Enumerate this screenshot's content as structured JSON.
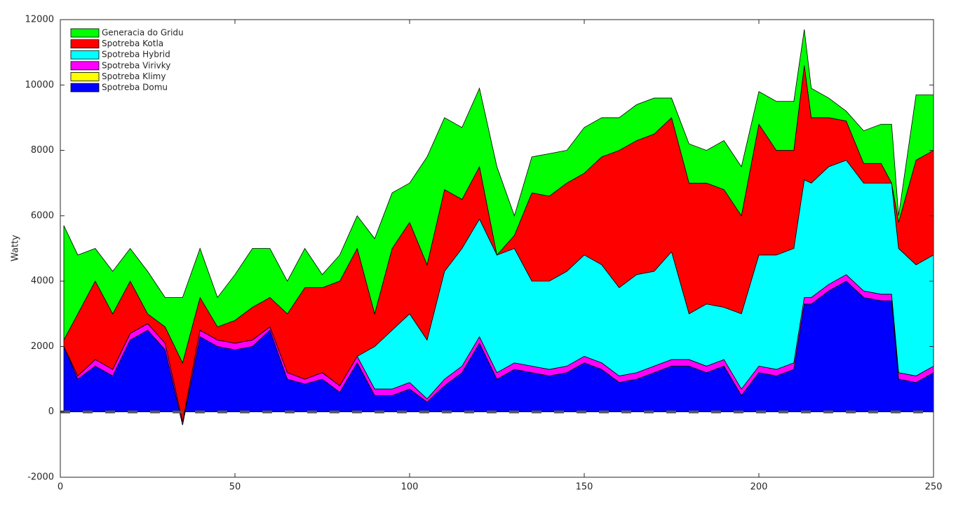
{
  "chart_data": {
    "type": "stacked-area",
    "ylabel": "Watty",
    "x": [
      1,
      5,
      10,
      15,
      20,
      25,
      30,
      35,
      40,
      45,
      50,
      55,
      60,
      65,
      70,
      75,
      80,
      85,
      90,
      95,
      100,
      105,
      110,
      115,
      120,
      125,
      130,
      135,
      140,
      145,
      150,
      155,
      160,
      165,
      170,
      175,
      180,
      185,
      190,
      195,
      200,
      205,
      210,
      213,
      215,
      220,
      225,
      230,
      235,
      238,
      240,
      245,
      250
    ],
    "series": [
      {
        "name": "Spotreba Domu",
        "color": "#0000ff",
        "values": [
          2000,
          1000,
          1400,
          1100,
          2200,
          2500,
          1900,
          -400,
          2300,
          2000,
          1900,
          2000,
          2500,
          1000,
          850,
          1000,
          600,
          1500,
          500,
          500,
          700,
          300,
          800,
          1200,
          2100,
          1000,
          1300,
          1200,
          1100,
          1200,
          1500,
          1300,
          900,
          1000,
          1200,
          1400,
          1400,
          1200,
          1400,
          500,
          1200,
          1100,
          1300,
          3300,
          3300,
          3700,
          4000,
          3500,
          3400,
          3400,
          1000,
          900,
          1200
        ]
      },
      {
        "name": "Spotreba Klimy",
        "color": "#ffff00",
        "values": [
          0,
          0,
          0,
          0,
          0,
          0,
          0,
          0,
          0,
          0,
          0,
          0,
          0,
          0,
          0,
          0,
          0,
          0,
          0,
          0,
          0,
          0,
          0,
          0,
          0,
          0,
          0,
          0,
          0,
          0,
          0,
          0,
          0,
          0,
          0,
          0,
          0,
          0,
          0,
          0,
          0,
          0,
          0,
          0,
          0,
          0,
          0,
          0,
          0,
          0,
          0,
          0,
          0
        ]
      },
      {
        "name": "Spotreba Virivky",
        "color": "#ff00ff",
        "values": [
          0,
          100,
          200,
          200,
          200,
          200,
          200,
          100,
          200,
          200,
          200,
          200,
          100,
          200,
          150,
          200,
          200,
          200,
          200,
          200,
          200,
          100,
          200,
          200,
          200,
          200,
          200,
          200,
          200,
          200,
          200,
          200,
          200,
          200,
          200,
          200,
          200,
          200,
          200,
          200,
          200,
          200,
          200,
          200,
          200,
          200,
          200,
          200,
          200,
          200,
          200,
          200,
          200
        ]
      },
      {
        "name": "Spotreba Hybrid",
        "color": "#00ffff",
        "values": [
          0,
          0,
          0,
          0,
          0,
          0,
          0,
          0,
          0,
          0,
          0,
          0,
          0,
          0,
          0,
          0,
          0,
          0,
          1300,
          1800,
          2100,
          1800,
          3300,
          3600,
          3600,
          3600,
          3500,
          2600,
          2700,
          2900,
          3100,
          3000,
          2700,
          3000,
          2900,
          3300,
          1400,
          1900,
          1600,
          2300,
          3400,
          3500,
          3500,
          3600,
          3500,
          3600,
          3500,
          3300,
          3400,
          3400,
          3800,
          3400,
          3400
        ]
      },
      {
        "name": "Spotreba Kotla",
        "color": "#ff0000",
        "values": [
          200,
          1900,
          2400,
          1700,
          1600,
          300,
          500,
          1800,
          1000,
          400,
          700,
          1000,
          900,
          1800,
          2800,
          2600,
          3200,
          3300,
          1000,
          2500,
          2800,
          2300,
          2500,
          1500,
          1600,
          0,
          400,
          2700,
          2600,
          2700,
          2500,
          3300,
          4200,
          4100,
          4200,
          4100,
          4000,
          3700,
          3600,
          3000,
          4000,
          3200,
          3000,
          3500,
          2000,
          1500,
          1200,
          600,
          600,
          0,
          800,
          3200,
          3200
        ]
      },
      {
        "name": "Generacia do Gridu",
        "color": "#00ff00",
        "values": [
          3500,
          1800,
          1000,
          1300,
          1000,
          1300,
          900,
          2000,
          1500,
          900,
          1400,
          1800,
          1500,
          1000,
          1200,
          400,
          800,
          1000,
          2300,
          1700,
          1200,
          3300,
          2200,
          2200,
          2400,
          2700,
          600,
          1100,
          1300,
          1000,
          1400,
          1200,
          1000,
          1100,
          1100,
          600,
          1200,
          1000,
          1500,
          1500,
          1000,
          1500,
          1500,
          1100,
          900,
          600,
          300,
          1000,
          1200,
          1800,
          200,
          2000,
          1700
        ]
      }
    ],
    "xlim": [
      0,
      250
    ],
    "xticks": [
      0,
      50,
      100,
      150,
      200,
      250
    ],
    "ylim": [
      -2000,
      12000
    ],
    "yticks": [
      -2000,
      0,
      2000,
      4000,
      6000,
      8000,
      10000,
      12000
    ],
    "legend": "upper-left"
  }
}
